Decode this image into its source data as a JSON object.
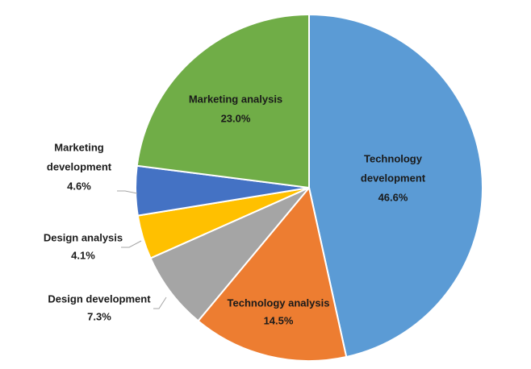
{
  "chart_data": {
    "type": "pie",
    "title": "",
    "start_angle_deg": 0,
    "direction": "clockwise",
    "slices": [
      {
        "name": "Technology development",
        "label_lines": [
          "Technology",
          "development"
        ],
        "value": 46.6,
        "value_label": "46.6%",
        "color": "#5B9BD5",
        "label_position": "inside"
      },
      {
        "name": "Technology analysis",
        "label_lines": [
          "Technology analysis"
        ],
        "value": 14.5,
        "value_label": "14.5%",
        "color": "#ED7D31",
        "label_position": "inside"
      },
      {
        "name": "Design development",
        "label_lines": [
          "Design development"
        ],
        "value": 7.3,
        "value_label": "7.3%",
        "color": "#A5A5A5",
        "label_position": "outside"
      },
      {
        "name": "Design analysis",
        "label_lines": [
          "Design analysis"
        ],
        "value": 4.1,
        "value_label": "4.1%",
        "color": "#FFC000",
        "label_position": "outside"
      },
      {
        "name": "Marketing development",
        "label_lines": [
          "Marketing",
          "development"
        ],
        "value": 4.6,
        "value_label": "4.6%",
        "color": "#4472C4",
        "label_position": "outside"
      },
      {
        "name": "Marketing analysis",
        "label_lines": [
          "Marketing analysis"
        ],
        "value": 23.0,
        "value_label": "23.0%",
        "color": "#70AD47",
        "label_position": "inside"
      }
    ]
  }
}
